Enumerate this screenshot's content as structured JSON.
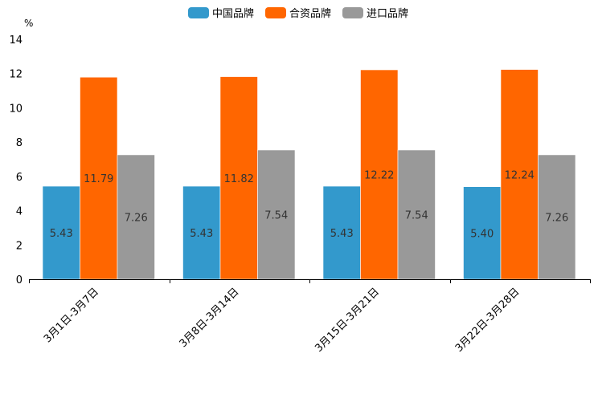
{
  "chart_data": {
    "type": "bar",
    "title": "",
    "xlabel": "",
    "ylabel": "%",
    "ylim": [
      0,
      14
    ],
    "yticks": [
      0,
      2,
      4,
      6,
      8,
      10,
      12,
      14
    ],
    "grid": false,
    "legend_position": "top-center",
    "categories": [
      "3月1日-3月7日",
      "3月8日-3月14日",
      "3月15日-3月21日",
      "3月22日-3月28日"
    ],
    "series": [
      {
        "name": "中国品牌",
        "color": "#3399cc",
        "values": [
          5.43,
          5.43,
          5.43,
          5.4
        ],
        "labels": [
          "5.43",
          "5.43",
          "5.43",
          "5.40"
        ]
      },
      {
        "name": "合资品牌",
        "color": "#ff6600",
        "values": [
          11.79,
          11.82,
          12.22,
          12.24
        ],
        "labels": [
          "11.79",
          "11.82",
          "12.22",
          "12.24"
        ]
      },
      {
        "name": "进口品牌",
        "color": "#999999",
        "values": [
          7.26,
          7.54,
          7.54,
          7.26
        ],
        "labels": [
          "7.26",
          "7.54",
          "7.54",
          "7.26"
        ]
      }
    ]
  }
}
